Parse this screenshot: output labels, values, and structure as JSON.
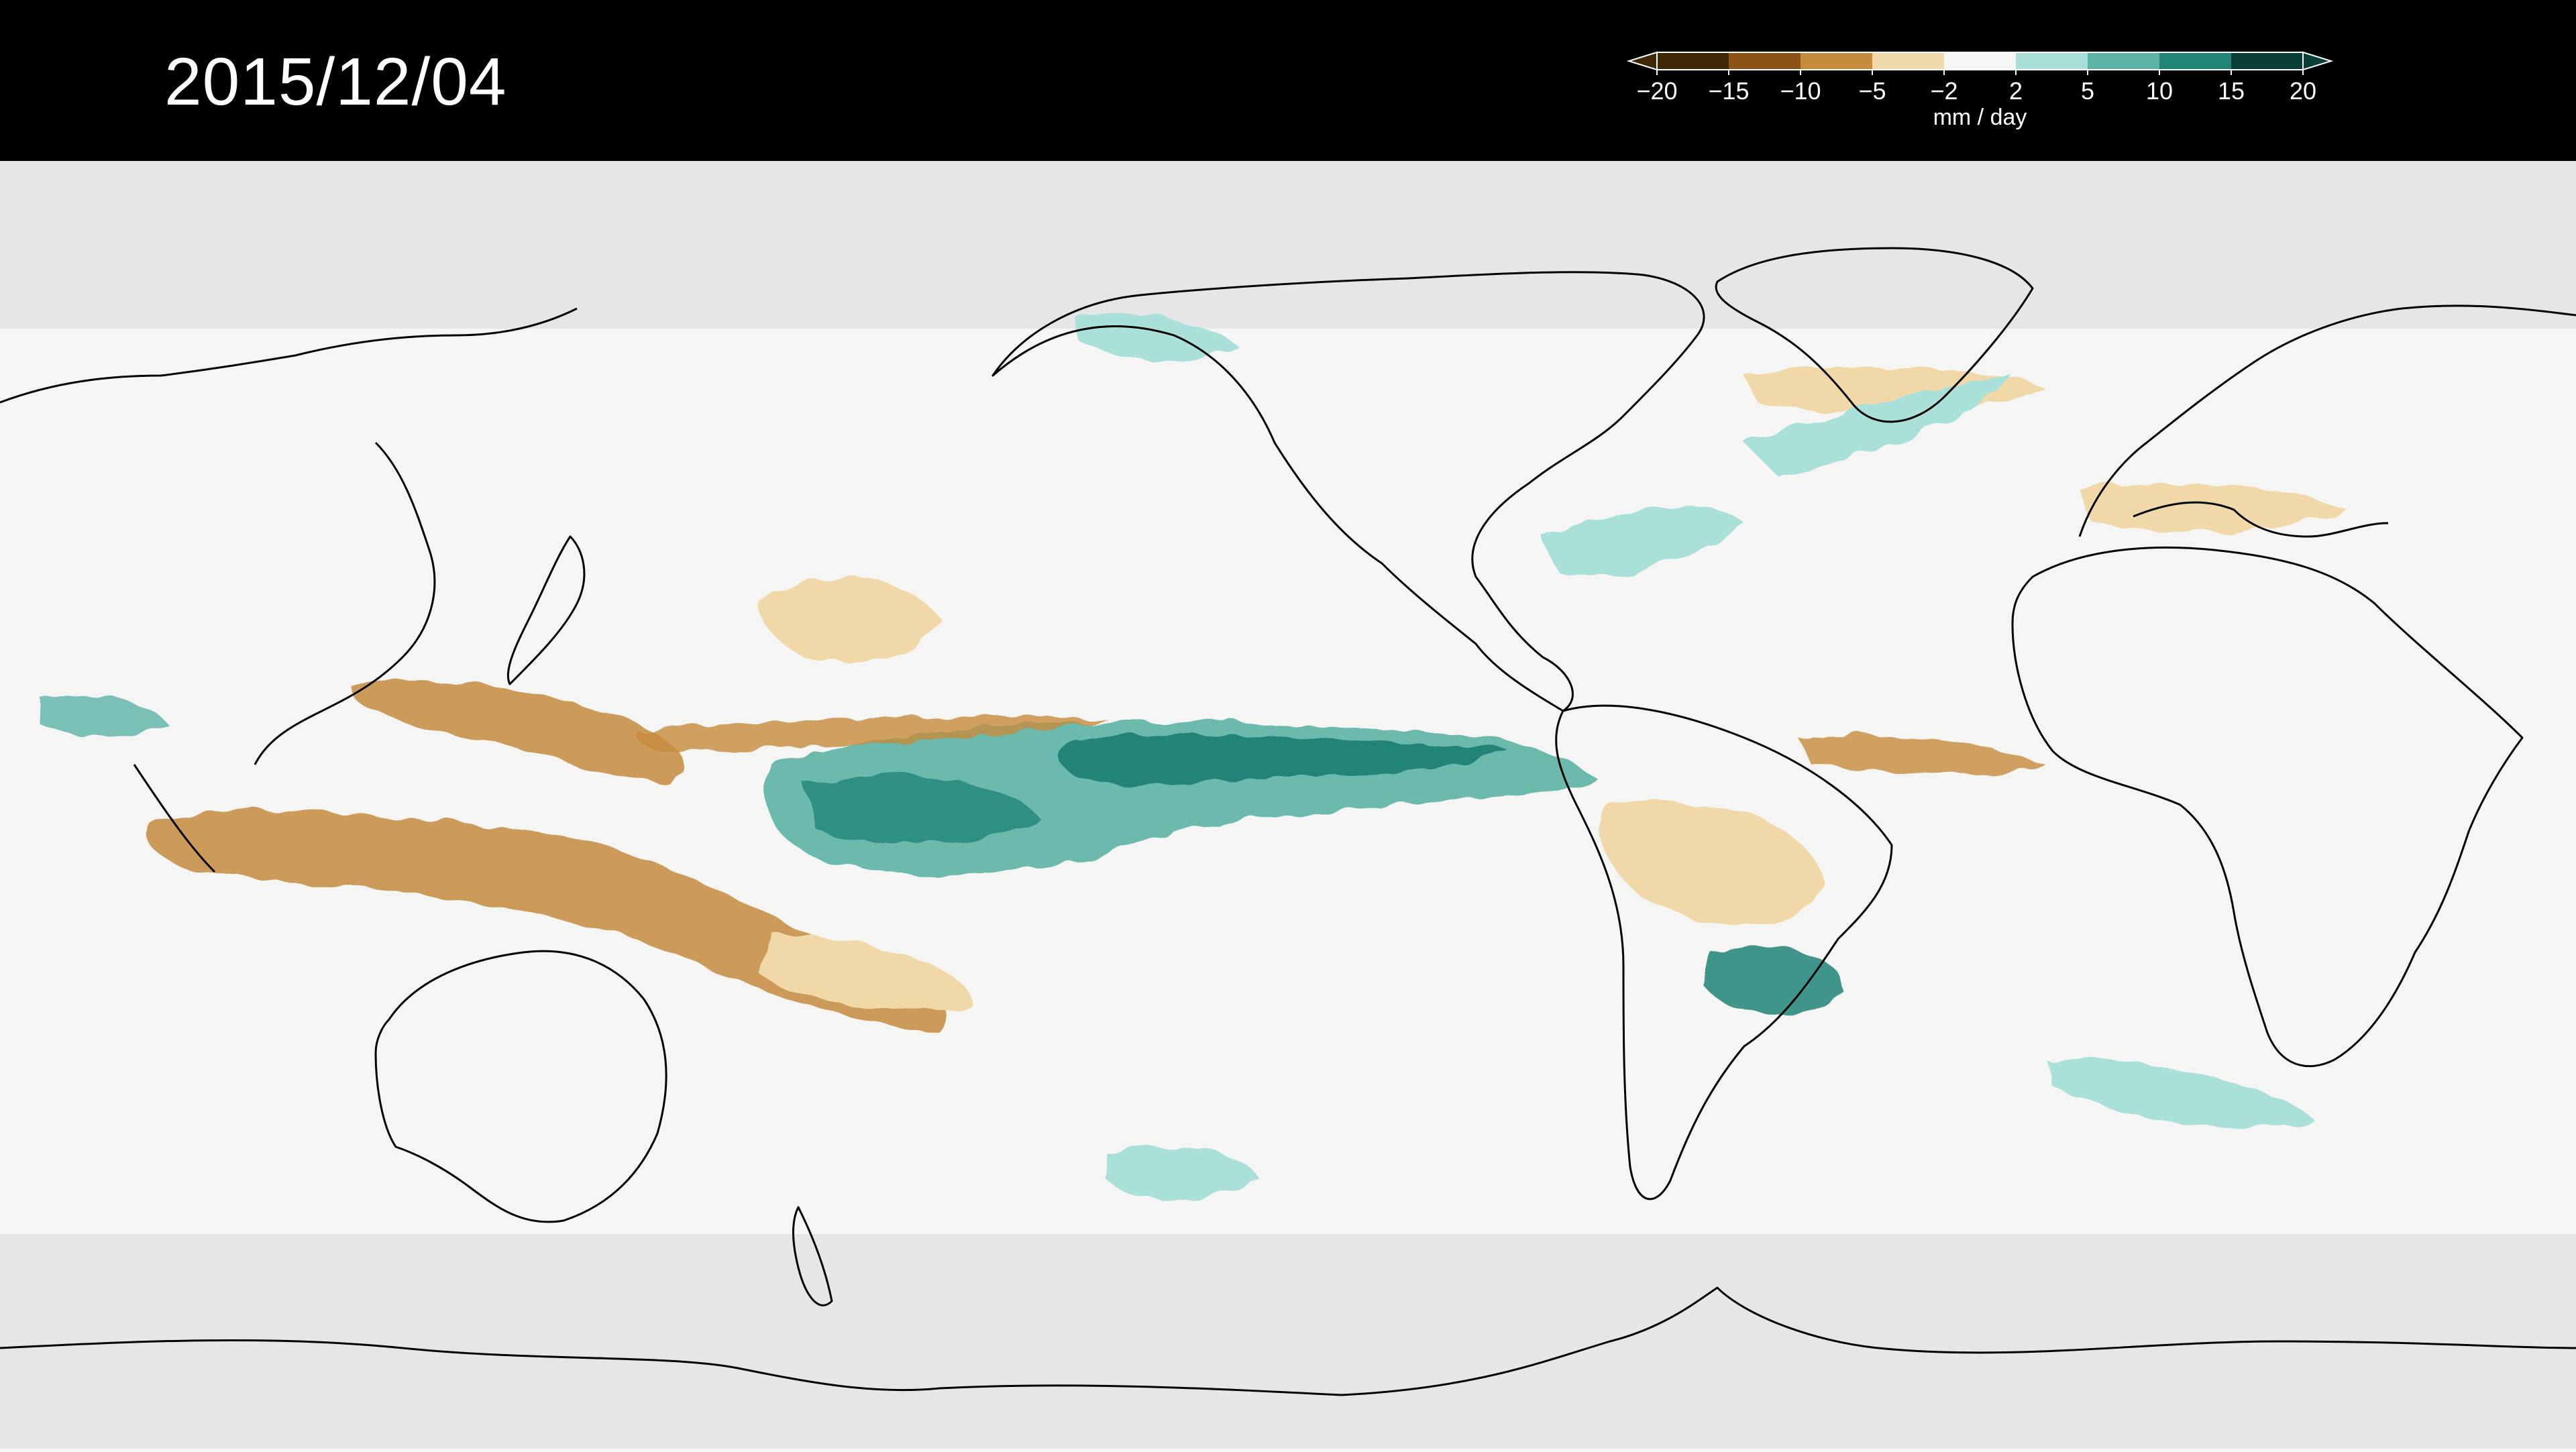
{
  "header": {
    "date": "2015/12/04"
  },
  "legend": {
    "unit": "mm / day",
    "ticks": [
      "−20",
      "−15",
      "−10",
      "−5",
      "−2",
      "2",
      "5",
      "10",
      "15",
      "20"
    ],
    "colors": [
      "#3f2605",
      "#8c5414",
      "#c68b3c",
      "#f0d8a8",
      "#f5f5f4",
      "#a9e0da",
      "#5cb3a6",
      "#208477",
      "#0a3f37"
    ],
    "extend": "both"
  },
  "map": {
    "projection": "equirectangular",
    "center_longitude": "180",
    "ocean_land_fill": "#f5f5f4",
    "polar_mask_color": "#e6e6e6",
    "coastline_color": "#000000",
    "dry_color": "#c68b3c",
    "wet_color": "#208477"
  }
}
